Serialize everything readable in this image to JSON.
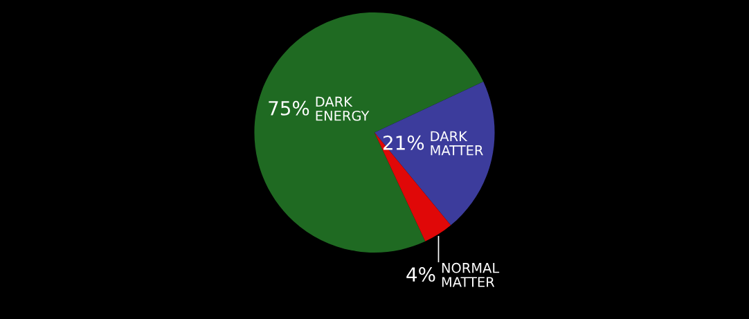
{
  "chart_data": {
    "type": "pie",
    "categories": [
      "DARK\nENERGY",
      "DARK\nMATTER",
      "NORMAL\nMATTER"
    ],
    "values": [
      75,
      21,
      4
    ],
    "value_labels": [
      "75%",
      "21%",
      "4%"
    ],
    "colors": [
      "#1f6a22",
      "#3c3c9c",
      "#e00808"
    ]
  }
}
